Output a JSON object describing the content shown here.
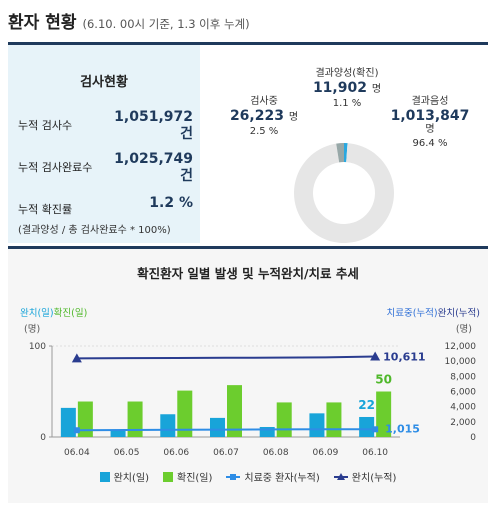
{
  "header": {
    "title": "환자 현황",
    "subtitle": "(6.10. 00시 기준, 1.3 이후 누계)"
  },
  "test_status": {
    "title": "검사현황",
    "rows": [
      {
        "label": "누적 검사수",
        "value": "1,051,972",
        "unit": "건"
      },
      {
        "label": "누적 검사완료수",
        "value": "1,025,749",
        "unit": "건"
      },
      {
        "label": "누적 확진률",
        "value": "1.2 %",
        "unit": ""
      }
    ],
    "note": "(결과양성 / 총 검사완료수 * 100%)"
  },
  "donut": {
    "positive": {
      "label": "결과양성(확진)",
      "value": "11,902",
      "unit": "명",
      "pct": "1.1 %"
    },
    "testing": {
      "label": "검사중",
      "value": "26,223",
      "unit": "명",
      "pct": "2.5 %"
    },
    "negative": {
      "label": "결과음성",
      "value": "1,013,847",
      "unit": "명",
      "pct": "96.4 %"
    },
    "colors": {
      "positive": "#29a8e0",
      "testing": "#98a8a8",
      "negative": "#e6e6e6"
    }
  },
  "chart_data": {
    "type": "bar",
    "title": "확진환자 일별 발생 및 누적완치/치료 추세",
    "categories": [
      "06.04",
      "06.05",
      "06.06",
      "06.07",
      "06.08",
      "06.09",
      "06.10"
    ],
    "left_axis_label_1": "완치(일)",
    "left_axis_label_2": "확진(일)",
    "left_unit": "(명)",
    "right_axis_label_1": "치료중(누적)",
    "right_axis_label_2": "완치(누적)",
    "right_unit": "(명)",
    "left_ticks": [
      "100",
      "0"
    ],
    "left_ylim": [
      0,
      100
    ],
    "right_ticks": [
      "12,000",
      "10,000",
      "8,000",
      "6,000",
      "4,000",
      "2,000",
      "0"
    ],
    "right_ylim": [
      0,
      12000
    ],
    "series": [
      {
        "name": "완치(일)",
        "type": "bar",
        "axis": "left",
        "color": "#18a4d9",
        "values": [
          32,
          8,
          25,
          21,
          11,
          26,
          22
        ]
      },
      {
        "name": "확진(일)",
        "type": "bar",
        "axis": "left",
        "color": "#6ccd2e",
        "values": [
          39,
          39,
          51,
          57,
          38,
          38,
          50
        ]
      },
      {
        "name": "치료중 환자(누적)",
        "type": "line",
        "axis": "right",
        "color": "#2e8de6",
        "values": [
          889,
          931,
          957,
          974,
          1001,
          1023,
          1015
        ]
      },
      {
        "name": "완치(누적)",
        "type": "line",
        "axis": "right",
        "color": "#2a3c8f",
        "values": [
          10363,
          10398,
          10422,
          10446,
          10467,
          10499,
          10611
        ]
      }
    ],
    "data_labels": {
      "green_last": "50",
      "blue_last": "22",
      "cum_recovered_last": "10,611",
      "treating_last": "1,015"
    },
    "legend_position": "bottom"
  }
}
